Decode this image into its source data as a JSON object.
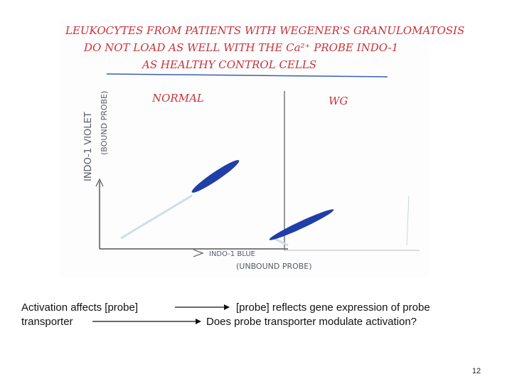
{
  "slide": {
    "title_lines": [
      "LEUKOCYTES FROM PATIENTS WITH WEGENER'S GRANULOMATOSIS",
      "DO NOT LOAD AS WELL WITH THE Ca²⁺ PROBE INDO-1",
      "AS HEALTHY CONTROL CELLS"
    ],
    "panels": [
      "NORMAL",
      "WG"
    ],
    "y_axis_label": "INDO-1 VIOLET",
    "y_axis_sublabel": "(BOUND PROBE)",
    "x_axis_label": "INDO-1 BLUE",
    "x_axis_sublabel": "(UNBOUND PROBE)",
    "caption": {
      "rows": [
        {
          "left": "Activation affects [probe]",
          "right": "[probe] reflects gene expression of probe"
        },
        {
          "left": "transporter",
          "right": "Does probe transporter modulate activation?"
        }
      ]
    },
    "page_number": "12"
  }
}
